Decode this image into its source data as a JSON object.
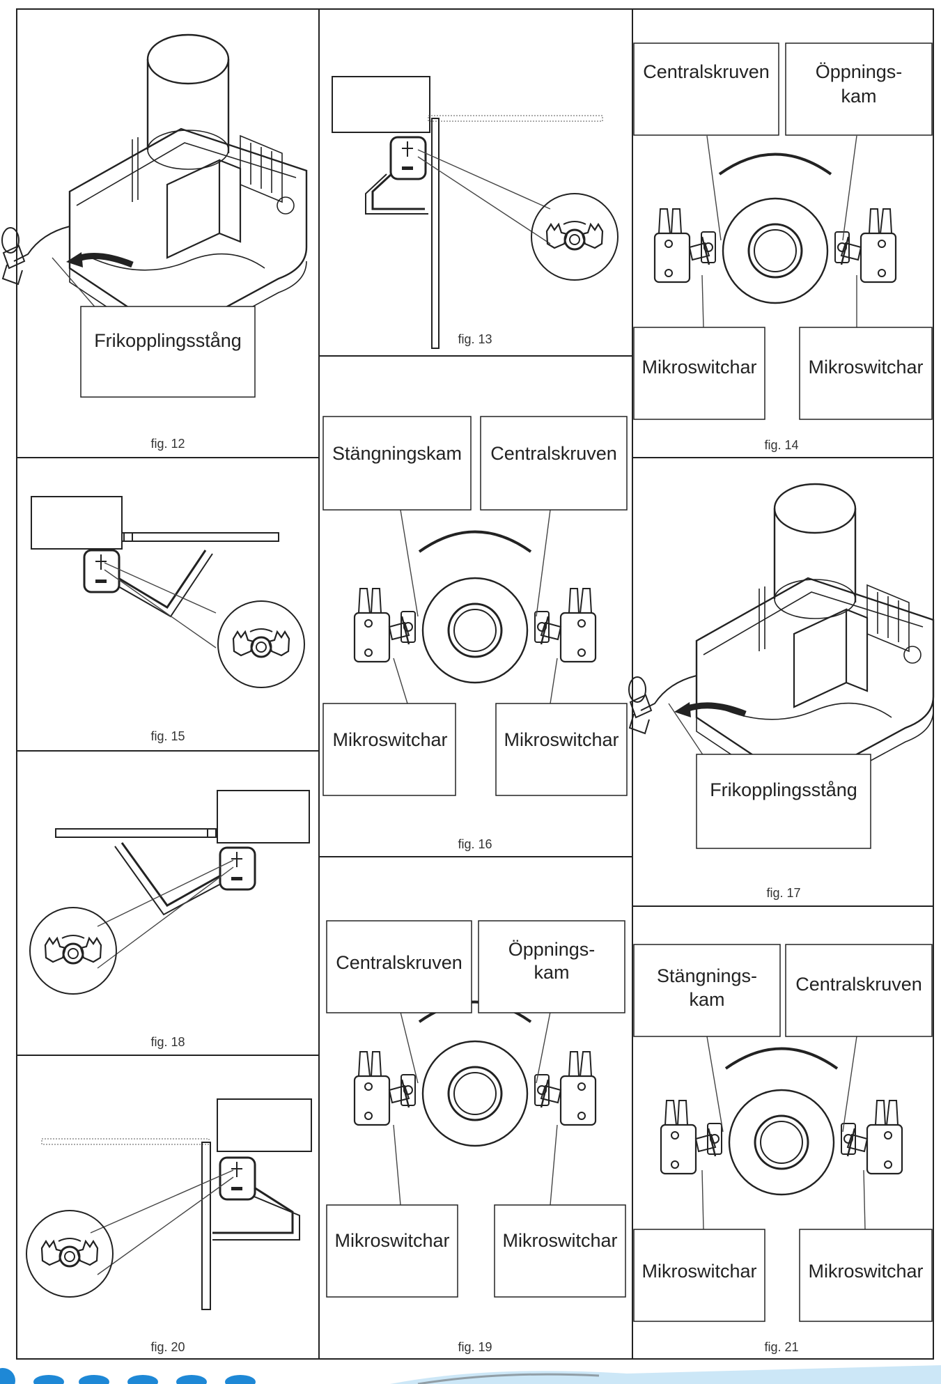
{
  "figures": {
    "fig12": {
      "caption": "fig. 12",
      "label": "Frikopplingsstång"
    },
    "fig13": {
      "caption": "fig. 13"
    },
    "fig14": {
      "caption": "fig. 14",
      "label_top_left": "Centralskruven",
      "label_top_right_1": "Öppnings-",
      "label_top_right_2": "kam",
      "label_bottom_left": "Mikroswitchar",
      "label_bottom_right": "Mikroswitchar"
    },
    "fig15": {
      "caption": "fig. 15"
    },
    "fig16": {
      "caption": "fig. 16",
      "label_top_left": "Stängningskam",
      "label_top_right": "Centralskruven",
      "label_bottom_left": "Mikroswitchar",
      "label_bottom_right": "Mikroswitchar"
    },
    "fig17": {
      "caption": "fig. 17",
      "label": "Frikopplingsstång"
    },
    "fig18": {
      "caption": "fig. 18"
    },
    "fig19": {
      "caption": "fig. 19",
      "label_top_left": "Centralskruven",
      "label_top_right_1": "Öppnings-",
      "label_top_right_2": "kam",
      "label_bottom_left": "Mikroswitchar",
      "label_bottom_right": "Mikroswitchar"
    },
    "fig20": {
      "caption": "fig. 20"
    },
    "fig21": {
      "caption": "fig. 21",
      "label_top_left_1": "Stängnings-",
      "label_top_left_2": "kam",
      "label_top_right": "Centralskruven",
      "label_bottom_left": "Mikroswitchar",
      "label_bottom_right": "Mikroswitchar"
    }
  },
  "colors": {
    "line": "#222222",
    "accent_blue": "#1e88d6",
    "accent_light": "#9ad0f0"
  }
}
